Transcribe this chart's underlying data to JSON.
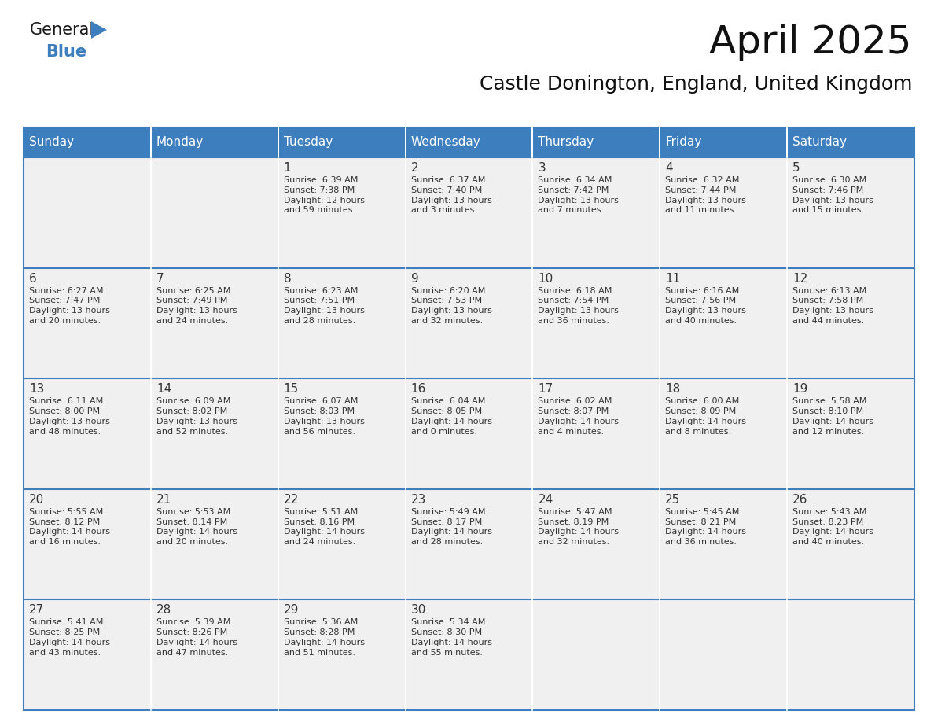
{
  "title": "April 2025",
  "subtitle": "Castle Donington, England, United Kingdom",
  "header_bg": "#3D7EBF",
  "header_text_color": "#FFFFFF",
  "cell_bg_light": "#F0F0F0",
  "cell_bg_white": "#FFFFFF",
  "border_color": "#3D7EBF",
  "text_color": "#333333",
  "days_of_week": [
    "Sunday",
    "Monday",
    "Tuesday",
    "Wednesday",
    "Thursday",
    "Friday",
    "Saturday"
  ],
  "weeks": [
    [
      {
        "day": "",
        "sunrise": "",
        "sunset": "",
        "daylight": ""
      },
      {
        "day": "",
        "sunrise": "",
        "sunset": "",
        "daylight": ""
      },
      {
        "day": "1",
        "sunrise": "Sunrise: 6:39 AM",
        "sunset": "Sunset: 7:38 PM",
        "daylight": "Daylight: 12 hours\nand 59 minutes."
      },
      {
        "day": "2",
        "sunrise": "Sunrise: 6:37 AM",
        "sunset": "Sunset: 7:40 PM",
        "daylight": "Daylight: 13 hours\nand 3 minutes."
      },
      {
        "day": "3",
        "sunrise": "Sunrise: 6:34 AM",
        "sunset": "Sunset: 7:42 PM",
        "daylight": "Daylight: 13 hours\nand 7 minutes."
      },
      {
        "day": "4",
        "sunrise": "Sunrise: 6:32 AM",
        "sunset": "Sunset: 7:44 PM",
        "daylight": "Daylight: 13 hours\nand 11 minutes."
      },
      {
        "day": "5",
        "sunrise": "Sunrise: 6:30 AM",
        "sunset": "Sunset: 7:46 PM",
        "daylight": "Daylight: 13 hours\nand 15 minutes."
      }
    ],
    [
      {
        "day": "6",
        "sunrise": "Sunrise: 6:27 AM",
        "sunset": "Sunset: 7:47 PM",
        "daylight": "Daylight: 13 hours\nand 20 minutes."
      },
      {
        "day": "7",
        "sunrise": "Sunrise: 6:25 AM",
        "sunset": "Sunset: 7:49 PM",
        "daylight": "Daylight: 13 hours\nand 24 minutes."
      },
      {
        "day": "8",
        "sunrise": "Sunrise: 6:23 AM",
        "sunset": "Sunset: 7:51 PM",
        "daylight": "Daylight: 13 hours\nand 28 minutes."
      },
      {
        "day": "9",
        "sunrise": "Sunrise: 6:20 AM",
        "sunset": "Sunset: 7:53 PM",
        "daylight": "Daylight: 13 hours\nand 32 minutes."
      },
      {
        "day": "10",
        "sunrise": "Sunrise: 6:18 AM",
        "sunset": "Sunset: 7:54 PM",
        "daylight": "Daylight: 13 hours\nand 36 minutes."
      },
      {
        "day": "11",
        "sunrise": "Sunrise: 6:16 AM",
        "sunset": "Sunset: 7:56 PM",
        "daylight": "Daylight: 13 hours\nand 40 minutes."
      },
      {
        "day": "12",
        "sunrise": "Sunrise: 6:13 AM",
        "sunset": "Sunset: 7:58 PM",
        "daylight": "Daylight: 13 hours\nand 44 minutes."
      }
    ],
    [
      {
        "day": "13",
        "sunrise": "Sunrise: 6:11 AM",
        "sunset": "Sunset: 8:00 PM",
        "daylight": "Daylight: 13 hours\nand 48 minutes."
      },
      {
        "day": "14",
        "sunrise": "Sunrise: 6:09 AM",
        "sunset": "Sunset: 8:02 PM",
        "daylight": "Daylight: 13 hours\nand 52 minutes."
      },
      {
        "day": "15",
        "sunrise": "Sunrise: 6:07 AM",
        "sunset": "Sunset: 8:03 PM",
        "daylight": "Daylight: 13 hours\nand 56 minutes."
      },
      {
        "day": "16",
        "sunrise": "Sunrise: 6:04 AM",
        "sunset": "Sunset: 8:05 PM",
        "daylight": "Daylight: 14 hours\nand 0 minutes."
      },
      {
        "day": "17",
        "sunrise": "Sunrise: 6:02 AM",
        "sunset": "Sunset: 8:07 PM",
        "daylight": "Daylight: 14 hours\nand 4 minutes."
      },
      {
        "day": "18",
        "sunrise": "Sunrise: 6:00 AM",
        "sunset": "Sunset: 8:09 PM",
        "daylight": "Daylight: 14 hours\nand 8 minutes."
      },
      {
        "day": "19",
        "sunrise": "Sunrise: 5:58 AM",
        "sunset": "Sunset: 8:10 PM",
        "daylight": "Daylight: 14 hours\nand 12 minutes."
      }
    ],
    [
      {
        "day": "20",
        "sunrise": "Sunrise: 5:55 AM",
        "sunset": "Sunset: 8:12 PM",
        "daylight": "Daylight: 14 hours\nand 16 minutes."
      },
      {
        "day": "21",
        "sunrise": "Sunrise: 5:53 AM",
        "sunset": "Sunset: 8:14 PM",
        "daylight": "Daylight: 14 hours\nand 20 minutes."
      },
      {
        "day": "22",
        "sunrise": "Sunrise: 5:51 AM",
        "sunset": "Sunset: 8:16 PM",
        "daylight": "Daylight: 14 hours\nand 24 minutes."
      },
      {
        "day": "23",
        "sunrise": "Sunrise: 5:49 AM",
        "sunset": "Sunset: 8:17 PM",
        "daylight": "Daylight: 14 hours\nand 28 minutes."
      },
      {
        "day": "24",
        "sunrise": "Sunrise: 5:47 AM",
        "sunset": "Sunset: 8:19 PM",
        "daylight": "Daylight: 14 hours\nand 32 minutes."
      },
      {
        "day": "25",
        "sunrise": "Sunrise: 5:45 AM",
        "sunset": "Sunset: 8:21 PM",
        "daylight": "Daylight: 14 hours\nand 36 minutes."
      },
      {
        "day": "26",
        "sunrise": "Sunrise: 5:43 AM",
        "sunset": "Sunset: 8:23 PM",
        "daylight": "Daylight: 14 hours\nand 40 minutes."
      }
    ],
    [
      {
        "day": "27",
        "sunrise": "Sunrise: 5:41 AM",
        "sunset": "Sunset: 8:25 PM",
        "daylight": "Daylight: 14 hours\nand 43 minutes."
      },
      {
        "day": "28",
        "sunrise": "Sunrise: 5:39 AM",
        "sunset": "Sunset: 8:26 PM",
        "daylight": "Daylight: 14 hours\nand 47 minutes."
      },
      {
        "day": "29",
        "sunrise": "Sunrise: 5:36 AM",
        "sunset": "Sunset: 8:28 PM",
        "daylight": "Daylight: 14 hours\nand 51 minutes."
      },
      {
        "day": "30",
        "sunrise": "Sunrise: 5:34 AM",
        "sunset": "Sunset: 8:30 PM",
        "daylight": "Daylight: 14 hours\nand 55 minutes."
      },
      {
        "day": "",
        "sunrise": "",
        "sunset": "",
        "daylight": ""
      },
      {
        "day": "",
        "sunrise": "",
        "sunset": "",
        "daylight": ""
      },
      {
        "day": "",
        "sunrise": "",
        "sunset": "",
        "daylight": ""
      }
    ]
  ],
  "logo_text_general": "General",
  "logo_text_blue": "Blue",
  "logo_color_general": "#1a1a1a",
  "logo_color_blue": "#3D7EBF",
  "logo_triangle_color": "#3D7EBF",
  "title_fontsize": 36,
  "subtitle_fontsize": 18,
  "header_fontsize": 11,
  "day_num_fontsize": 11,
  "cell_text_fontsize": 8
}
